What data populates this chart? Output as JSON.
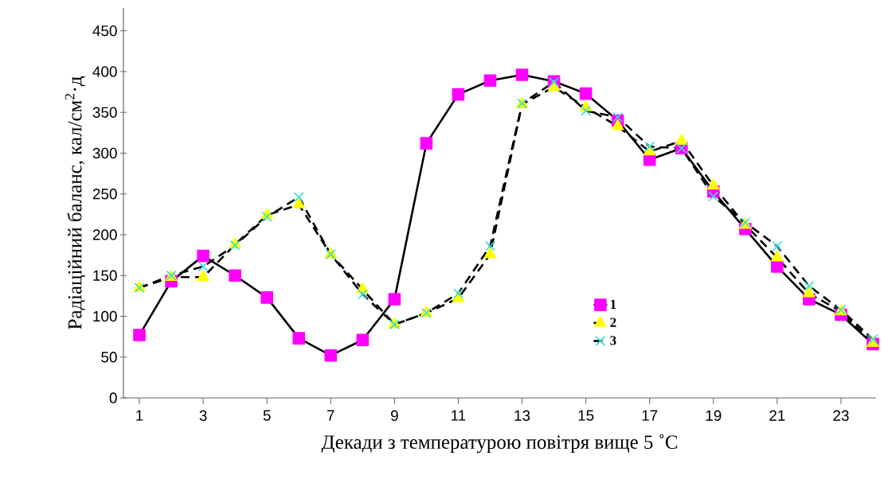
{
  "chart_data": {
    "type": "line",
    "xlabel": "Декади з температурою повітря вище 5 ˚С",
    "ylabel": "Радіаційний баланс, кал/см$^{2}$·д",
    "x": [
      1,
      2,
      3,
      4,
      5,
      6,
      7,
      8,
      9,
      10,
      11,
      12,
      13,
      14,
      15,
      16,
      17,
      18,
      19,
      20,
      21,
      22,
      23,
      24
    ],
    "series": [
      {
        "name": "1",
        "color": "#ff00ff",
        "marker": "square",
        "line_style": "solid",
        "values": [
          77,
          143,
          174,
          150,
          123,
          73,
          52,
          71,
          121,
          312,
          372,
          389,
          396,
          388,
          373,
          340,
          292,
          306,
          253,
          207,
          161,
          121,
          102,
          66
        ]
      },
      {
        "name": "2",
        "color": "#ffff00",
        "marker": "triangle",
        "line_style": "dashed",
        "values": [
          135,
          148,
          148,
          188,
          224,
          237,
          176,
          133,
          90,
          104,
          122,
          176,
          360,
          381,
          356,
          333,
          302,
          315,
          260,
          212,
          172,
          128,
          106,
          67
        ]
      },
      {
        "name": "3",
        "color": "#33dddd",
        "marker": "cross",
        "line_style": "dashed",
        "values": [
          135,
          150,
          161,
          187,
          222,
          246,
          176,
          127,
          90,
          104,
          128,
          186,
          361,
          387,
          352,
          344,
          308,
          306,
          247,
          215,
          186,
          137,
          108,
          72
        ]
      }
    ],
    "xlim": [
      0.5,
      24.1
    ],
    "ylim": [
      0,
      478
    ],
    "xticks": [
      1,
      3,
      5,
      7,
      9,
      11,
      13,
      15,
      17,
      19,
      21,
      23
    ],
    "yticks": [
      0,
      50,
      100,
      150,
      200,
      250,
      300,
      350,
      400,
      450
    ],
    "grid": false,
    "legend": "bottom right"
  }
}
